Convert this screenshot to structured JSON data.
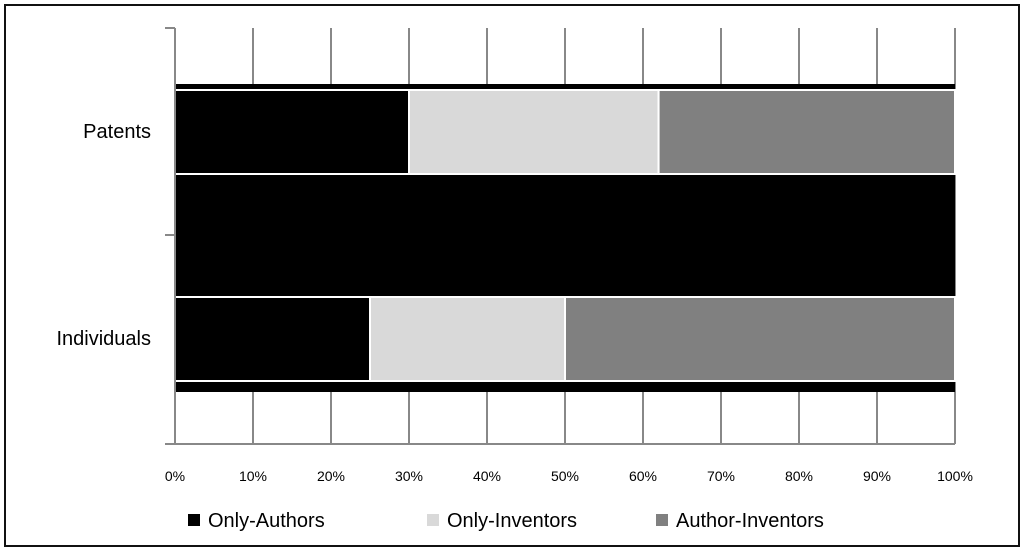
{
  "chart_data": {
    "type": "bar",
    "orientation": "horizontal",
    "stacked": "percent",
    "categories": [
      "Patents",
      "Individuals"
    ],
    "series": [
      {
        "name": "Only-Authors",
        "color": "#000000",
        "values": [
          30,
          25
        ]
      },
      {
        "name": "Only-Inventors",
        "color": "#d9d9d9",
        "values": [
          32,
          25
        ]
      },
      {
        "name": "Author-Inventors",
        "color": "#808080",
        "values": [
          38,
          50
        ]
      }
    ],
    "xlim": [
      0,
      100
    ],
    "x_ticks": [
      "0%",
      "10%",
      "20%",
      "30%",
      "40%",
      "50%",
      "60%",
      "70%",
      "80%",
      "90%",
      "100%"
    ],
    "grid": "vertical",
    "legend": "bottom",
    "title": "",
    "xlabel": "",
    "ylabel": ""
  }
}
